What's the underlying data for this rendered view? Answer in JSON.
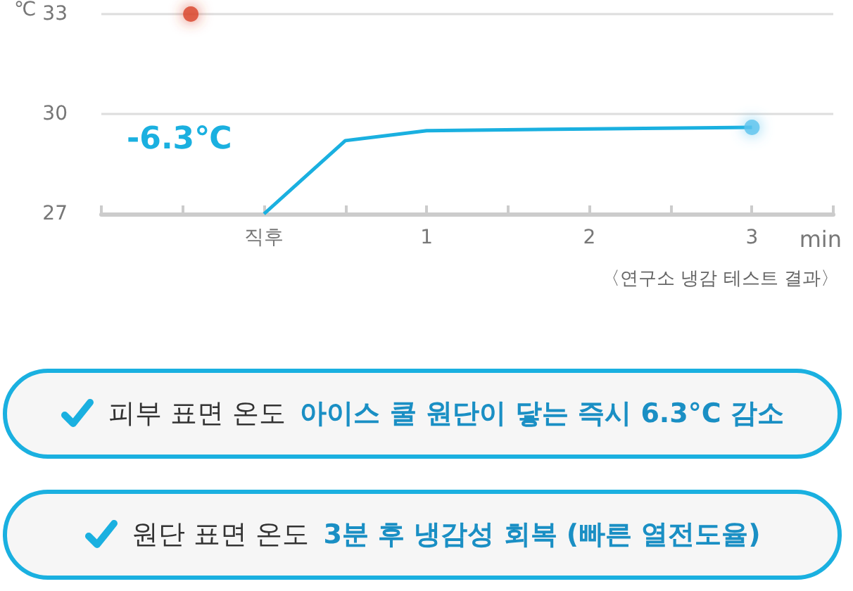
{
  "chart_data": {
    "type": "line",
    "ylabel": "℃",
    "xlabel": "min",
    "xlim": [
      -1,
      3.5
    ],
    "xticks": [
      {
        "value": -1,
        "label": null
      },
      {
        "value": -0.5,
        "label": null
      },
      {
        "value": 0,
        "label": "직후"
      },
      {
        "value": 0.5,
        "label": null
      },
      1,
      {
        "value": 1.5,
        "label": null
      },
      2,
      {
        "value": 2.5,
        "label": null
      },
      3,
      {
        "value": 3.5,
        "label": null
      }
    ],
    "ylim": [
      27,
      33
    ],
    "yticks": [
      27,
      30,
      33
    ],
    "grid": "y",
    "series": [
      {
        "type": "line",
        "color": "#1ab0e0",
        "x": [
          0,
          0.5,
          1,
          3
        ],
        "values": [
          27,
          29.2,
          29.5,
          29.6
        ],
        "marker": "none"
      },
      {
        "type": "scatter",
        "color": "#d9442c",
        "x": [
          -0.45
        ],
        "values": [
          33
        ],
        "marker": "circle"
      },
      {
        "type": "scatter",
        "color": "#5bc3ee",
        "x": [
          3
        ],
        "values": [
          29.6
        ],
        "marker": "circle"
      }
    ],
    "annotations": [
      "-6.3℃",
      "〈연구소 냉감 테스트 결과〉",
      "피부 표면 온도",
      "아이스 쿨 원단이 닿는 즉시 6.3°C 감소",
      "원단 표면 온도",
      "3분 후 냉감성 회복 (빠른 열전도율)"
    ]
  }
}
